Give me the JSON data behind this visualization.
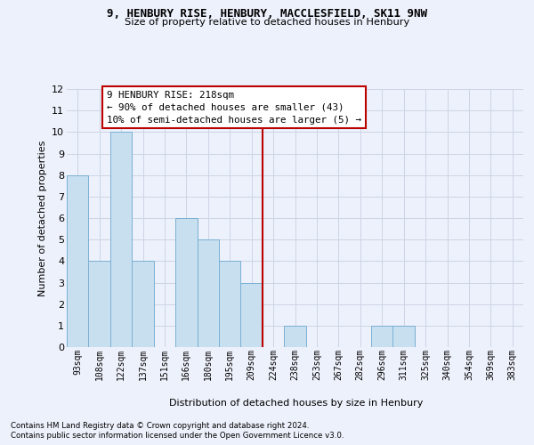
{
  "title1": "9, HENBURY RISE, HENBURY, MACCLESFIELD, SK11 9NW",
  "title2": "Size of property relative to detached houses in Henbury",
  "xlabel": "Distribution of detached houses by size in Henbury",
  "ylabel": "Number of detached properties",
  "categories": [
    "93sqm",
    "108sqm",
    "122sqm",
    "137sqm",
    "151sqm",
    "166sqm",
    "180sqm",
    "195sqm",
    "209sqm",
    "224sqm",
    "238sqm",
    "253sqm",
    "267sqm",
    "282sqm",
    "296sqm",
    "311sqm",
    "325sqm",
    "340sqm",
    "354sqm",
    "369sqm",
    "383sqm"
  ],
  "values": [
    8,
    4,
    10,
    4,
    0,
    6,
    5,
    4,
    3,
    0,
    1,
    0,
    0,
    0,
    1,
    1,
    0,
    0,
    0,
    0,
    0
  ],
  "bar_color": "#c8dff0",
  "bar_edge_color": "#7ab0d4",
  "vline_x": 8.5,
  "annotation_text": "9 HENBURY RISE: 218sqm\n← 90% of detached houses are smaller (43)\n10% of semi-detached houses are larger (5) →",
  "ylim_max": 12,
  "background_color": "#edf1fb",
  "grid_color": "#cdd5e5",
  "vline_color": "#bb0000",
  "ann_box_edge": "#bb0000",
  "ann_box_face": "#ffffff",
  "footer1": "Contains HM Land Registry data © Crown copyright and database right 2024.",
  "footer2": "Contains public sector information licensed under the Open Government Licence v3.0."
}
